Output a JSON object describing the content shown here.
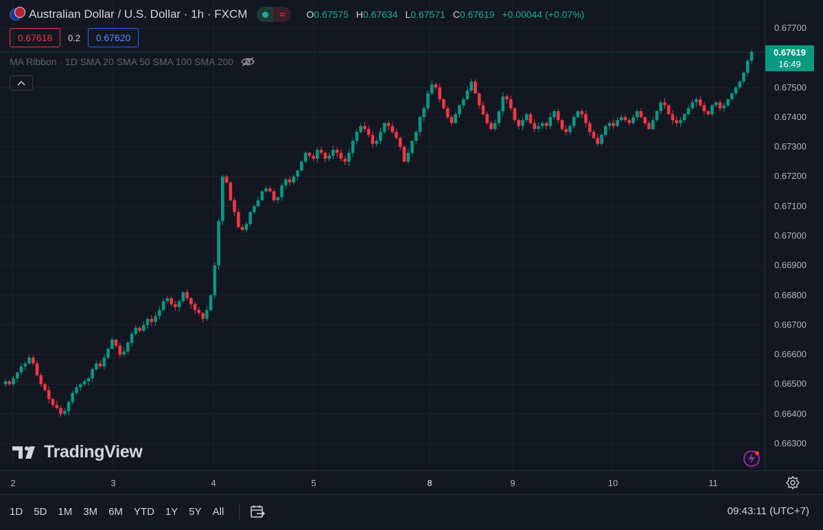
{
  "header": {
    "title": "Australian Dollar / U.S. Dollar · 1h · FXCM",
    "status_icon": "market-open-dot",
    "ohlc": [
      {
        "k": "O",
        "v": "0.67575"
      },
      {
        "k": "H",
        "v": "0.67634"
      },
      {
        "k": "L",
        "v": "0.67571"
      },
      {
        "k": "C",
        "v": "0.67619"
      }
    ],
    "change": "+0.00044 (+0.07%)"
  },
  "order": {
    "sell": "0.67618",
    "spread": "0.2",
    "buy": "0.67620"
  },
  "indicator": {
    "label": "MA Ribbon · 1D SMA 20 SMA 50 SMA 100 SMA 200",
    "icon": "eye-hidden-icon"
  },
  "watermark": {
    "text": "TradingView"
  },
  "price_axis": {
    "ticks": [
      "0.67700",
      "0.67500",
      "0.67400",
      "0.67300",
      "0.67200",
      "0.67100",
      "0.67000",
      "0.66900",
      "0.66800",
      "0.66700",
      "0.66600",
      "0.66500",
      "0.66400",
      "0.66300"
    ],
    "last_price": "0.67619",
    "countdown": "16:49"
  },
  "time_axis": {
    "ticks": [
      {
        "label": "2",
        "bold": false
      },
      {
        "label": "3",
        "bold": false
      },
      {
        "label": "4",
        "bold": false
      },
      {
        "label": "5",
        "bold": false
      },
      {
        "label": "8",
        "bold": true
      },
      {
        "label": "9",
        "bold": false
      },
      {
        "label": "10",
        "bold": false
      },
      {
        "label": "11",
        "bold": false
      }
    ]
  },
  "bottom_bar": {
    "ranges": [
      "1D",
      "5D",
      "1M",
      "3M",
      "6M",
      "YTD",
      "1Y",
      "5Y",
      "All"
    ],
    "clock": "09:43:11 (UTC+7)"
  },
  "colors": {
    "up": "#089981",
    "down": "#f23645",
    "bg": "#131722",
    "grid": "#1e222d"
  },
  "chart_data": {
    "type": "candlestick",
    "symbol": "AUD/USD",
    "interval": "1h",
    "ylim": [
      0.6625,
      0.6775
    ],
    "grid": true,
    "close_path": [
      0.6651,
      0.665,
      0.6652,
      0.6654,
      0.6656,
      0.6657,
      0.6659,
      0.6657,
      0.6653,
      0.665,
      0.6648,
      0.6645,
      0.6643,
      0.6642,
      0.664,
      0.6641,
      0.6644,
      0.6647,
      0.6649,
      0.665,
      0.6651,
      0.6652,
      0.6655,
      0.6657,
      0.6656,
      0.6659,
      0.6662,
      0.6665,
      0.6663,
      0.666,
      0.6661,
      0.6664,
      0.6667,
      0.6669,
      0.6668,
      0.667,
      0.6672,
      0.6671,
      0.6673,
      0.6675,
      0.6678,
      0.6679,
      0.6677,
      0.6676,
      0.6678,
      0.6681,
      0.6679,
      0.6677,
      0.6675,
      0.6674,
      0.6672,
      0.6675,
      0.668,
      0.669,
      0.6705,
      0.672,
      0.6718,
      0.6712,
      0.6708,
      0.6703,
      0.6702,
      0.6704,
      0.6708,
      0.671,
      0.6712,
      0.6715,
      0.6716,
      0.6715,
      0.6712,
      0.6713,
      0.6717,
      0.6719,
      0.6718,
      0.672,
      0.6722,
      0.6725,
      0.6728,
      0.6727,
      0.6726,
      0.6729,
      0.6728,
      0.6726,
      0.6727,
      0.6729,
      0.6728,
      0.6726,
      0.6725,
      0.6728,
      0.6732,
      0.6735,
      0.6737,
      0.6736,
      0.6734,
      0.6731,
      0.6732,
      0.6735,
      0.6738,
      0.6737,
      0.6735,
      0.6733,
      0.673,
      0.6725,
      0.6728,
      0.6732,
      0.6735,
      0.674,
      0.6743,
      0.6748,
      0.6751,
      0.675,
      0.6746,
      0.6743,
      0.674,
      0.6738,
      0.6741,
      0.6744,
      0.6746,
      0.6749,
      0.6752,
      0.6748,
      0.6744,
      0.6741,
      0.6738,
      0.6736,
      0.6738,
      0.6742,
      0.6747,
      0.6746,
      0.6743,
      0.6739,
      0.6737,
      0.6739,
      0.6741,
      0.6738,
      0.6736,
      0.6737,
      0.6738,
      0.6737,
      0.674,
      0.6742,
      0.6739,
      0.6736,
      0.6735,
      0.6737,
      0.674,
      0.6742,
      0.6741,
      0.6738,
      0.6735,
      0.6733,
      0.6731,
      0.6734,
      0.6737,
      0.6738,
      0.6737,
      0.6739,
      0.674,
      0.6739,
      0.6738,
      0.674,
      0.6742,
      0.674,
      0.6738,
      0.6736,
      0.6739,
      0.6742,
      0.6745,
      0.6744,
      0.6741,
      0.6739,
      0.6738,
      0.6739,
      0.6741,
      0.6743,
      0.6745,
      0.6746,
      0.6744,
      0.6742,
      0.6741,
      0.6744,
      0.6745,
      0.6743,
      0.6744,
      0.6746,
      0.6748,
      0.675,
      0.6752,
      0.6755,
      0.6759,
      0.6762
    ]
  }
}
